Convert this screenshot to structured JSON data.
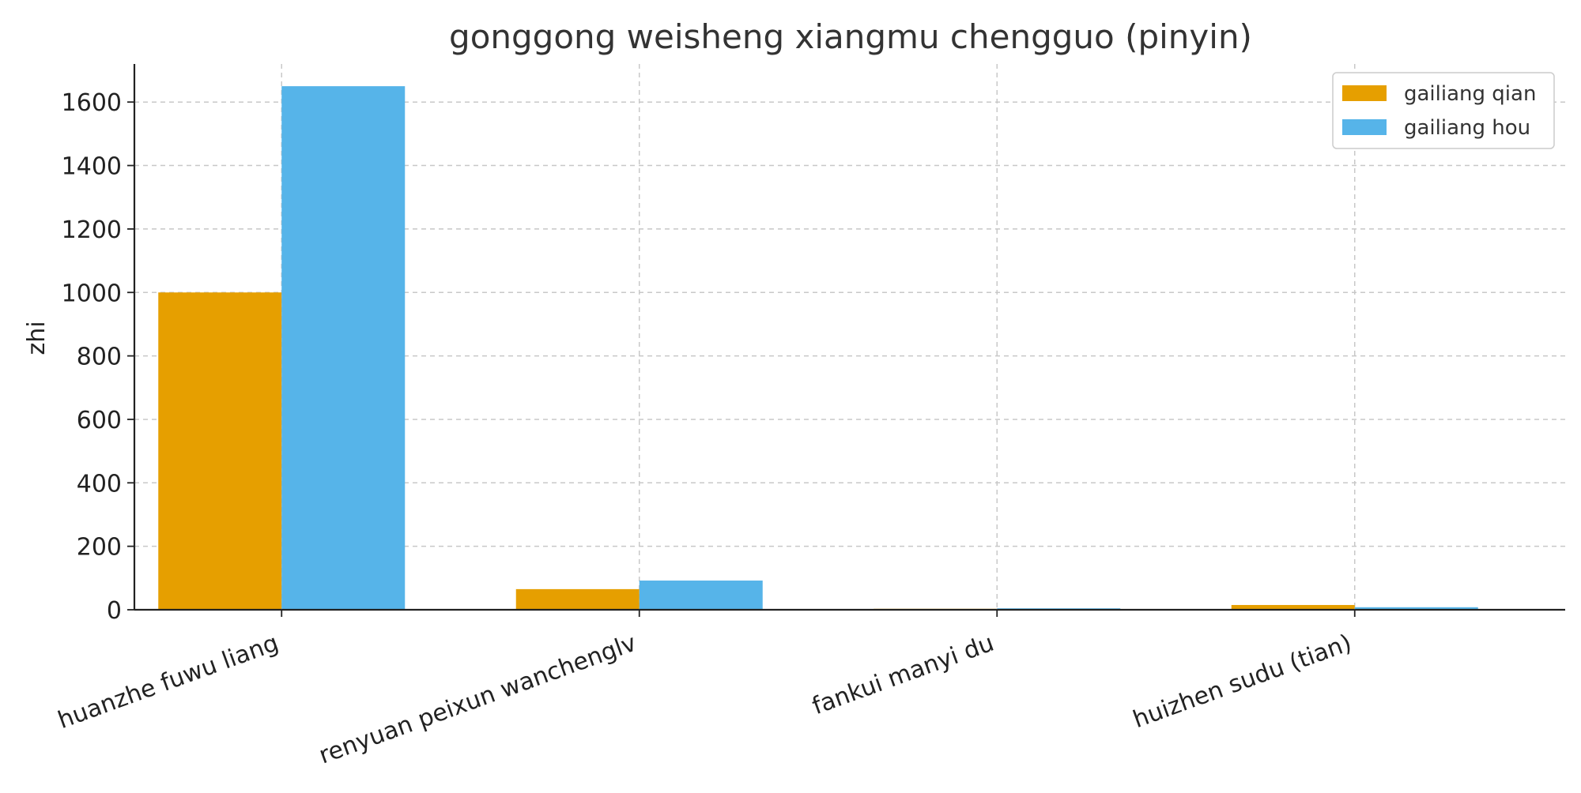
{
  "chart_data": {
    "type": "bar",
    "title": "gonggong weisheng xiangmu chengguo (pinyin)",
    "xlabel": "",
    "ylabel": "zhi",
    "ylim": [
      0,
      1720
    ],
    "yticks": [
      0,
      200,
      400,
      600,
      800,
      1000,
      1200,
      1400,
      1600
    ],
    "categories": [
      "huanzhe fuwu liang",
      "renyuan peixun wanchenglv",
      "fankui manyi du",
      "huizhen sudu (tian)"
    ],
    "series": [
      {
        "name": "gailiang qian",
        "color": "#E69F00",
        "values": [
          1000,
          65,
          3,
          15
        ]
      },
      {
        "name": "gailiang hou",
        "color": "#56B4E9",
        "values": [
          1650,
          92,
          4.5,
          8
        ]
      }
    ],
    "grid": true,
    "legend_position": "top-right"
  }
}
